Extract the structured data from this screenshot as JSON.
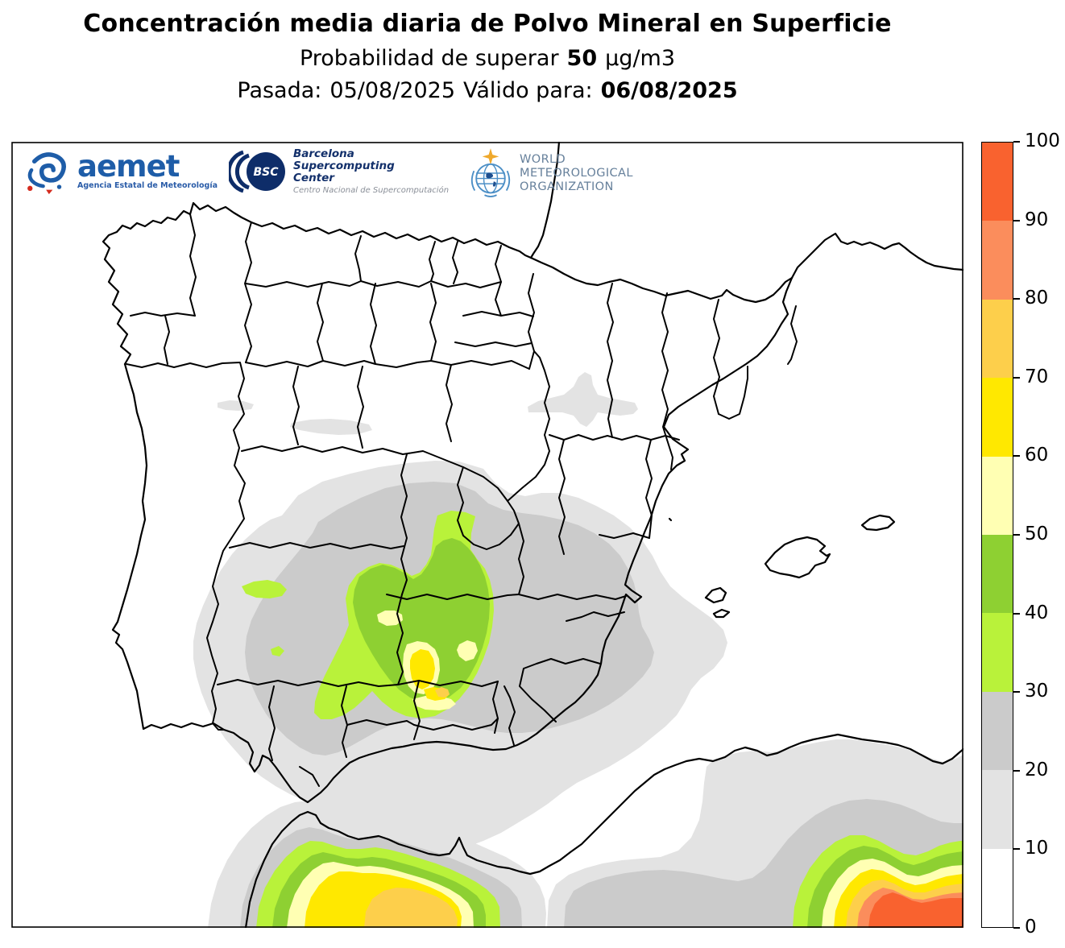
{
  "title": "Concentración media diaria de Polvo Mineral en Superficie",
  "subtitle": {
    "prefix": "Probabilidad de superar",
    "threshold": "50",
    "unit": "µg/m3"
  },
  "run_line": {
    "pasada_label": "Pasada:",
    "pasada_date": "05/08/2025",
    "valid_label": "Válido para:",
    "valid_date": "06/08/2025"
  },
  "logos": {
    "aemet": {
      "name": "aemet",
      "subtitle": "Agencia Estatal de Meteorología"
    },
    "bsc": {
      "acronym": "BSC",
      "line1": "Barcelona",
      "line2": "Supercomputing",
      "line3": "Center",
      "subtitle": "Centro Nacional de Supercomputación"
    },
    "wmo": {
      "line1": "WORLD",
      "line2": "METEOROLOGICAL",
      "line3": "ORGANIZATION"
    }
  },
  "colorbar": {
    "min": 0,
    "max": 100,
    "ticks": [
      0,
      10,
      20,
      30,
      40,
      50,
      60,
      70,
      80,
      90,
      100
    ],
    "levels": [
      {
        "from": 0,
        "to": 10,
        "color": "#ffffff"
      },
      {
        "from": 10,
        "to": 20,
        "color": "#e3e3e3"
      },
      {
        "from": 20,
        "to": 30,
        "color": "#cbcbcb"
      },
      {
        "from": 30,
        "to": 40,
        "color": "#b9f23a"
      },
      {
        "from": 40,
        "to": 50,
        "color": "#8ed032"
      },
      {
        "from": 50,
        "to": 60,
        "color": "#ffffb3"
      },
      {
        "from": 60,
        "to": 70,
        "color": "#ffe800"
      },
      {
        "from": 70,
        "to": 80,
        "color": "#fdcf4b"
      },
      {
        "from": 80,
        "to": 90,
        "color": "#fb8d5c"
      },
      {
        "from": 90,
        "to": 100,
        "color": "#f9622f"
      }
    ]
  },
  "chart_data": {
    "type": "heatmap",
    "title": "Concentración media diaria de Polvo Mineral en Superficie",
    "variable": "Probabilidad de superar 50 µg/m3",
    "run": "05/08/2025",
    "valid_for": "06/08/2025",
    "unit": "%",
    "colorbar_range": [
      0,
      100
    ],
    "colorbar_step": 10,
    "legend_position": "right",
    "map_area": "Iberian Peninsula, Balearic Islands and North-African coast",
    "regions": [
      {
        "area": "South-central Spain (Ciudad Real / Albacete / northern Jaén)",
        "probability_band": "30-80"
      },
      {
        "area": "Extremadura and western Castilla-La Mancha",
        "probability_band": "10-30"
      },
      {
        "area": "Ebro valley near Zaragoza",
        "probability_band": "10-20"
      },
      {
        "area": "Northern Morocco south of the Strait of Gibraltar",
        "probability_band": "20-80"
      },
      {
        "area": "North-western Algeria (bottom-right corner)",
        "probability_band": "20-100"
      },
      {
        "area": "Rest of Iberian Peninsula and Balearic Islands",
        "probability_band": "0-10"
      }
    ]
  }
}
